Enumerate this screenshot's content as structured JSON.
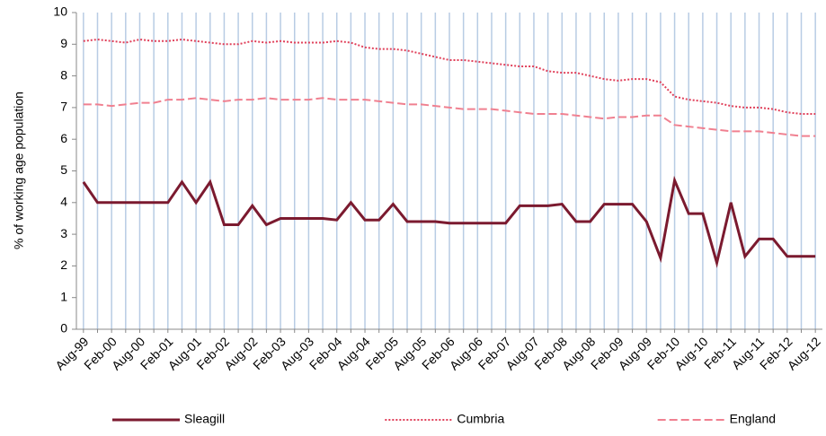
{
  "chart_data": {
    "type": "line",
    "y_label": "% of working age population",
    "categories": [
      "Aug-99",
      null,
      "Feb-00",
      null,
      "Aug-00",
      null,
      "Feb-01",
      null,
      "Aug-01",
      null,
      "Feb-02",
      null,
      "Aug-02",
      null,
      "Feb-03",
      null,
      "Aug-03",
      null,
      "Feb-04",
      null,
      "Aug-04",
      null,
      "Feb-05",
      null,
      "Aug-05",
      null,
      "Feb-06",
      null,
      "Aug-06",
      null,
      "Feb-07",
      null,
      "Aug-07",
      null,
      "Feb-08",
      null,
      "Aug-08",
      null,
      "Feb-09",
      null,
      "Aug-09",
      null,
      "Feb-10",
      null,
      "Aug-10",
      null,
      "Feb-11",
      null,
      "Aug-11",
      null,
      "Feb-12",
      null,
      "Aug-12"
    ],
    "series": [
      {
        "name": "Sleagill",
        "color": "#7b1a2f",
        "style": "solid",
        "values": [
          4.65,
          4.0,
          4.0,
          4.0,
          4.0,
          4.0,
          4.0,
          4.65,
          4.0,
          4.65,
          3.3,
          3.3,
          3.9,
          3.3,
          3.5,
          3.5,
          3.5,
          3.5,
          3.45,
          4.0,
          3.45,
          3.45,
          3.95,
          3.4,
          3.4,
          3.4,
          3.35,
          3.35,
          3.35,
          3.35,
          3.35,
          3.9,
          3.9,
          3.9,
          3.95,
          3.4,
          3.4,
          3.95,
          3.95,
          3.95,
          3.4,
          2.25,
          4.7,
          3.65,
          3.65,
          2.1,
          4.0,
          2.3,
          2.85,
          2.85,
          2.3,
          2.3,
          2.3
        ]
      },
      {
        "name": "Cumbria",
        "color": "#e0405a",
        "style": "dotted",
        "values": [
          9.1,
          9.15,
          9.1,
          9.05,
          9.15,
          9.1,
          9.1,
          9.15,
          9.1,
          9.05,
          9.0,
          9.0,
          9.1,
          9.05,
          9.1,
          9.05,
          9.05,
          9.05,
          9.1,
          9.05,
          8.9,
          8.85,
          8.85,
          8.8,
          8.7,
          8.6,
          8.5,
          8.5,
          8.45,
          8.4,
          8.35,
          8.3,
          8.3,
          8.15,
          8.1,
          8.1,
          8.0,
          7.9,
          7.85,
          7.9,
          7.9,
          7.8,
          7.35,
          7.25,
          7.2,
          7.15,
          7.05,
          7.0,
          7.0,
          6.95,
          6.85,
          6.8,
          6.8
        ]
      },
      {
        "name": "England",
        "color": "#f08090",
        "style": "dashed",
        "values": [
          7.1,
          7.1,
          7.05,
          7.1,
          7.15,
          7.15,
          7.25,
          7.25,
          7.3,
          7.25,
          7.2,
          7.25,
          7.25,
          7.3,
          7.25,
          7.25,
          7.25,
          7.3,
          7.25,
          7.25,
          7.25,
          7.2,
          7.15,
          7.1,
          7.1,
          7.05,
          7.0,
          6.95,
          6.95,
          6.95,
          6.9,
          6.85,
          6.8,
          6.8,
          6.8,
          6.75,
          6.7,
          6.65,
          6.7,
          6.7,
          6.75,
          6.75,
          6.45,
          6.4,
          6.35,
          6.3,
          6.25,
          6.25,
          6.25,
          6.2,
          6.15,
          6.1,
          6.1
        ]
      }
    ],
    "ylim": [
      0,
      10
    ],
    "yticks": [
      0,
      1,
      2,
      3,
      4,
      5,
      6,
      7,
      8,
      9,
      10
    ],
    "grid": "vertical",
    "grid_color": "#b8cce4",
    "legend": "bottom"
  }
}
